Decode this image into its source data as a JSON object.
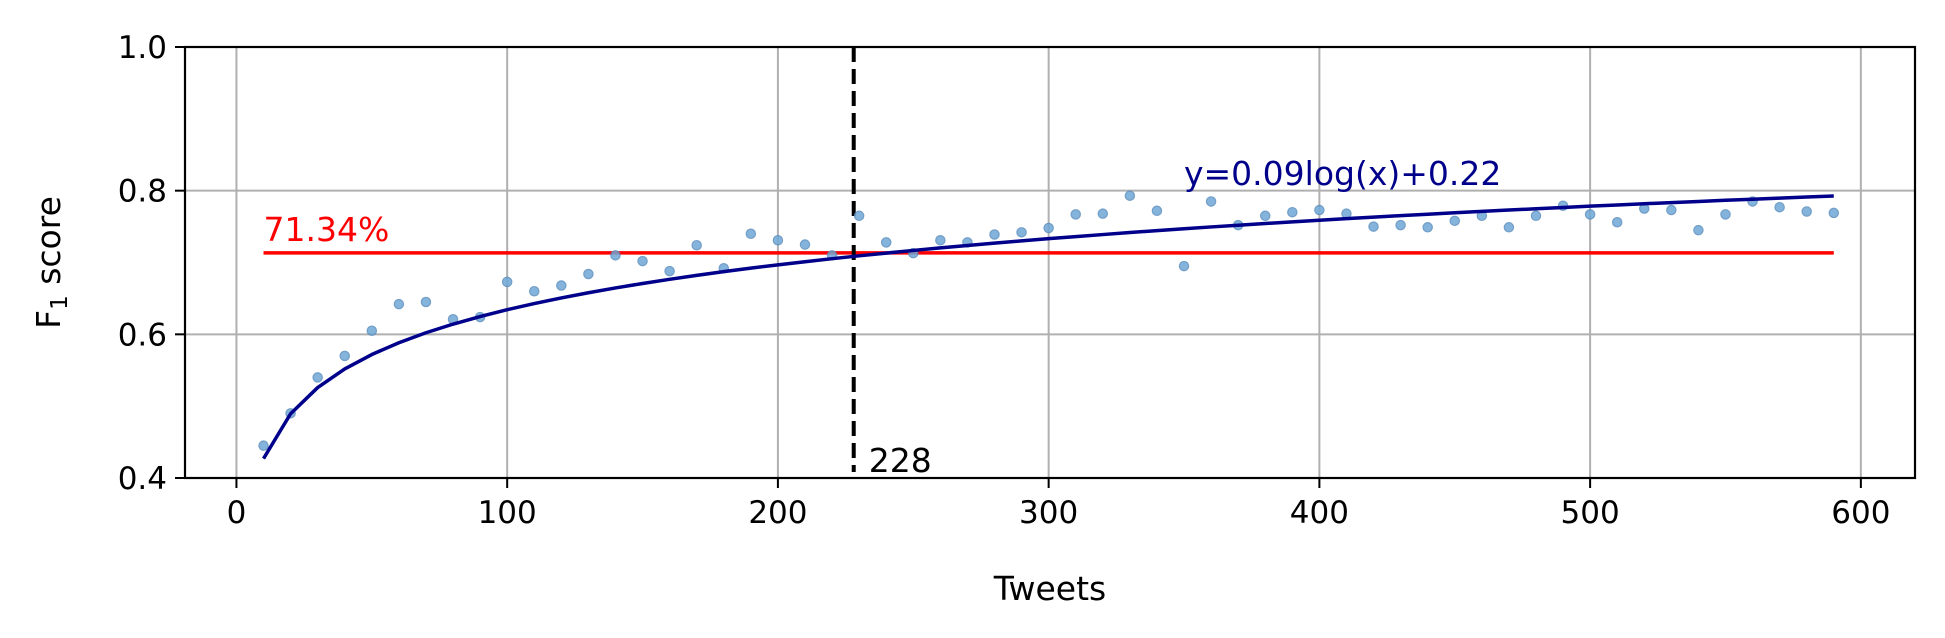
{
  "chart_data": {
    "type": "scatter",
    "xlabel": "Tweets",
    "ylabel_main": "F",
    "ylabel_sub": "1",
    "ylabel_rest": " score",
    "xlim": [
      -19,
      620
    ],
    "ylim": [
      0.4,
      1.0
    ],
    "xticks": [
      0,
      100,
      200,
      300,
      400,
      500,
      600
    ],
    "xtick_labels": [
      "0",
      "100",
      "200",
      "300",
      "400",
      "500",
      "600"
    ],
    "yticks": [
      0.4,
      0.6,
      0.8,
      1.0
    ],
    "ytick_labels": [
      "0.4",
      "0.6",
      "0.8",
      "1.0"
    ],
    "grid": true,
    "colors": {
      "points": "#6fa8d6",
      "points_edge": "#5b8fbf",
      "fit": "#00008b",
      "baseline": "#ff0000",
      "vline": "#000000",
      "grid": "#b0b0b0"
    },
    "series": [
      {
        "type": "scatter",
        "x": [
          10,
          20,
          30,
          40,
          50,
          60,
          70,
          80,
          90,
          100,
          110,
          120,
          130,
          140,
          150,
          160,
          170,
          180,
          190,
          200,
          210,
          220,
          230,
          240,
          250,
          260,
          270,
          280,
          290,
          300,
          310,
          320,
          330,
          340,
          350,
          360,
          370,
          380,
          390,
          400,
          410,
          420,
          430,
          440,
          450,
          460,
          470,
          480,
          490,
          500,
          510,
          520,
          530,
          540,
          550,
          560,
          570,
          580,
          590
        ],
        "y": [
          0.445,
          0.49,
          0.54,
          0.57,
          0.605,
          0.642,
          0.645,
          0.621,
          0.624,
          0.673,
          0.66,
          0.668,
          0.684,
          0.71,
          0.702,
          0.688,
          0.724,
          0.692,
          0.74,
          0.731,
          0.725,
          0.71,
          0.765,
          0.728,
          0.713,
          0.731,
          0.728,
          0.739,
          0.742,
          0.748,
          0.767,
          0.768,
          0.793,
          0.772,
          0.695,
          0.785,
          0.752,
          0.765,
          0.77,
          0.773,
          0.768,
          0.75,
          0.752,
          0.749,
          0.758,
          0.765,
          0.749,
          0.765,
          0.779,
          0.767,
          0.756,
          0.775,
          0.773,
          0.745,
          0.767,
          0.785,
          0.777,
          0.771,
          0.769
        ]
      },
      {
        "type": "line",
        "x": [
          10,
          20,
          30,
          40,
          50,
          60,
          70,
          80,
          90,
          100,
          110,
          120,
          130,
          140,
          150,
          160,
          170,
          180,
          190,
          200,
          210,
          220,
          230,
          240,
          250,
          260,
          270,
          280,
          290,
          300,
          310,
          320,
          330,
          340,
          350,
          360,
          370,
          380,
          390,
          400,
          410,
          420,
          430,
          440,
          450,
          460,
          470,
          480,
          490,
          500,
          510,
          520,
          530,
          540,
          550,
          560,
          570,
          580,
          590
        ],
        "y": [
          0.427,
          0.4894,
          0.5259,
          0.5518,
          0.5719,
          0.5883,
          0.6022,
          0.6142,
          0.6248,
          0.6343,
          0.6429,
          0.6507,
          0.6579,
          0.6646,
          0.6708,
          0.6766,
          0.6821,
          0.6873,
          0.6922,
          0.6967,
          0.7011,
          0.7053,
          0.7093,
          0.7131,
          0.7168,
          0.7203,
          0.7237,
          0.727,
          0.7301,
          0.7332,
          0.7361,
          0.7389,
          0.7417,
          0.7444,
          0.747,
          0.7495,
          0.7519,
          0.7543,
          0.7566,
          0.7588,
          0.761,
          0.7631,
          0.7652,
          0.7672,
          0.7692,
          0.7711,
          0.773,
          0.7748,
          0.7766,
          0.7784,
          0.7801,
          0.7818,
          0.7834,
          0.785,
          0.7866,
          0.7881,
          0.7896,
          0.7911,
          0.7926
        ]
      }
    ],
    "baseline": {
      "value": 0.7134,
      "x_start": 10,
      "x_end": 590,
      "label": "71.34%"
    },
    "vline": {
      "x": 228,
      "label": "228"
    },
    "fit_label": "y=0.09log(x)+0.22"
  }
}
